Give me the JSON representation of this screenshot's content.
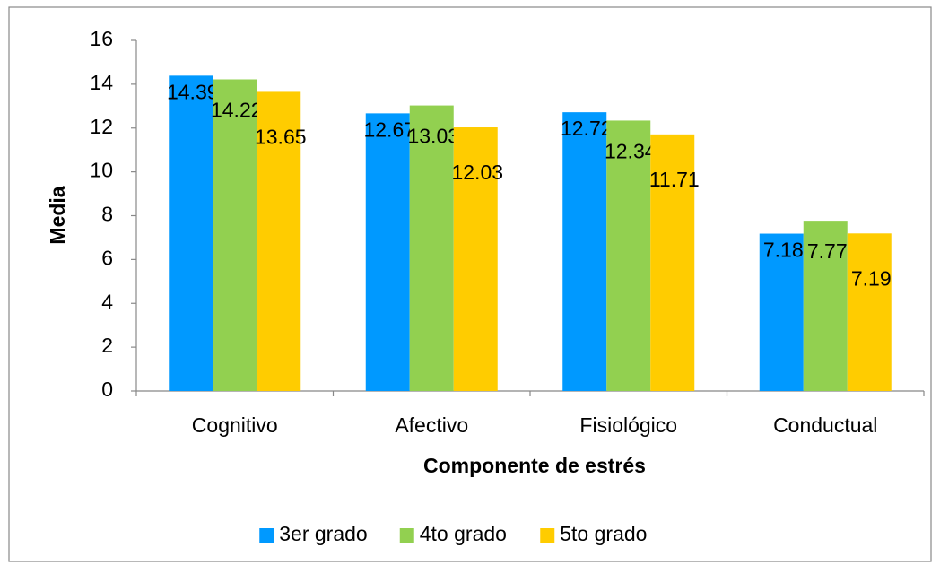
{
  "chart_data": {
    "type": "bar",
    "xlabel": "Componente de estrés",
    "ylabel": "Media",
    "categories": [
      "Cognitivo",
      "Afectivo",
      "Fisiológico",
      "Conductual"
    ],
    "series": [
      {
        "name": "3er grado",
        "color": "#0099ff",
        "values": [
          14.39,
          12.67,
          12.72,
          7.18
        ]
      },
      {
        "name": "4to grado",
        "color": "#92d050",
        "values": [
          14.22,
          13.03,
          12.34,
          7.77
        ]
      },
      {
        "name": "5to grado",
        "color": "#ffcc00",
        "values": [
          13.65,
          12.03,
          11.71,
          7.19
        ]
      }
    ],
    "ylim": [
      0,
      16
    ],
    "yticks": [
      0,
      2,
      4,
      6,
      8,
      10,
      12,
      14,
      16
    ],
    "grid": false,
    "legend": "bottom"
  }
}
